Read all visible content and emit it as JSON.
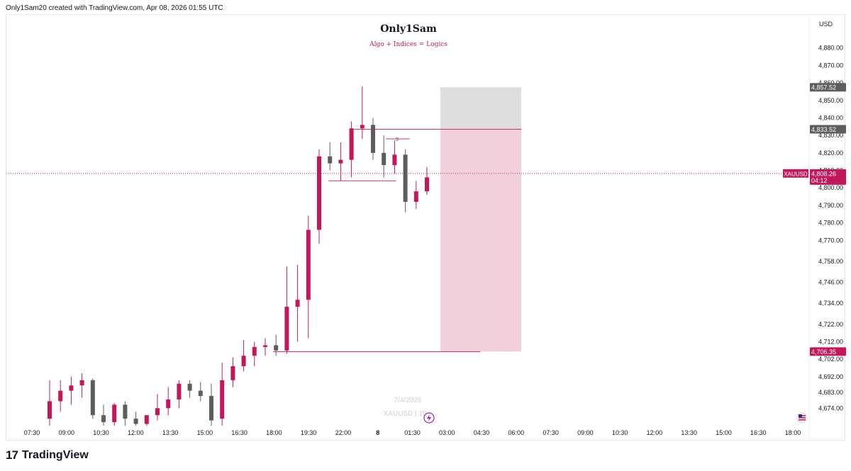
{
  "header": {
    "note": "Only1Sam20 created with TradingView.com, Apr 08, 2026 01:55 UTC"
  },
  "branding": {
    "name": "TradingView",
    "logo_icon": "tradingview-logo-icon"
  },
  "chart_data": {
    "type": "candlestick",
    "title": "Only1Sam",
    "subtitle": "Algo + Indices = Logics",
    "currency_label": "USD",
    "symbol": "XAUUSD",
    "watermark": {
      "date": "7/4/2026",
      "symbol": "XAUUSD",
      "interval": "15"
    },
    "price_axis": {
      "min": 4664,
      "max": 4890,
      "ticks": [
        "4,880.00",
        "4,870.00",
        "4,860.00",
        "4,850.00",
        "4,840.00",
        "4,830.00",
        "4,820.00",
        "4,810.00",
        "4,800.00",
        "4,790.00",
        "4,780.00",
        "4,770.00",
        "4,758.00",
        "4,746.00",
        "4,734.00",
        "4,722.00",
        "4,712.00",
        "4,702.00",
        "4,692.00",
        "4,683.00",
        "4,674.00"
      ],
      "tick_values": [
        4880,
        4870,
        4860,
        4850,
        4840,
        4830,
        4820,
        4810,
        4800,
        4790,
        4780,
        4770,
        4758,
        4746,
        4734,
        4722,
        4712,
        4702,
        4692,
        4683,
        4674
      ]
    },
    "time_axis": {
      "labels": [
        "07:30",
        "09:00",
        "10:30",
        "12:00",
        "13:30",
        "15:00",
        "16:30",
        "18:00",
        "19:30",
        "22:00",
        "8",
        "01:30",
        "03:00",
        "04:30",
        "06:00",
        "07:30",
        "09:00",
        "10:30",
        "12:00",
        "13:30",
        "15:00",
        "16:30",
        "18:00"
      ]
    },
    "candles": [
      {
        "o": 4668,
        "h": 4690,
        "l": 4664,
        "c": 4678
      },
      {
        "o": 4678,
        "h": 4690,
        "l": 4672,
        "c": 4684
      },
      {
        "o": 4684,
        "h": 4692,
        "l": 4676,
        "c": 4687
      },
      {
        "o": 4687,
        "h": 4694,
        "l": 4680,
        "c": 4690
      },
      {
        "o": 4690,
        "h": 4691,
        "l": 4668,
        "c": 4670
      },
      {
        "o": 4670,
        "h": 4676,
        "l": 4664,
        "c": 4666
      },
      {
        "o": 4666,
        "h": 4677,
        "l": 4664,
        "c": 4676
      },
      {
        "o": 4676,
        "h": 4678,
        "l": 4664,
        "c": 4668
      },
      {
        "o": 4668,
        "h": 4672,
        "l": 4664,
        "c": 4665
      },
      {
        "o": 4665,
        "h": 4670,
        "l": 4664,
        "c": 4670
      },
      {
        "o": 4670,
        "h": 4682,
        "l": 4667,
        "c": 4674
      },
      {
        "o": 4674,
        "h": 4686,
        "l": 4670,
        "c": 4679
      },
      {
        "o": 4679,
        "h": 4690,
        "l": 4674,
        "c": 4688
      },
      {
        "o": 4688,
        "h": 4690,
        "l": 4680,
        "c": 4684
      },
      {
        "o": 4684,
        "h": 4689,
        "l": 4678,
        "c": 4681
      },
      {
        "o": 4681,
        "h": 4688,
        "l": 4664,
        "c": 4667
      },
      {
        "o": 4668,
        "h": 4700,
        "l": 4664,
        "c": 4690
      },
      {
        "o": 4690,
        "h": 4703,
        "l": 4686,
        "c": 4698
      },
      {
        "o": 4698,
        "h": 4713,
        "l": 4695,
        "c": 4704
      },
      {
        "o": 4704,
        "h": 4712,
        "l": 4698,
        "c": 4709
      },
      {
        "o": 4709,
        "h": 4714,
        "l": 4704,
        "c": 4710
      },
      {
        "o": 4710,
        "h": 4716,
        "l": 4704,
        "c": 4707
      },
      {
        "o": 4707,
        "h": 4755,
        "l": 4705,
        "c": 4732
      },
      {
        "o": 4732,
        "h": 4756,
        "l": 4712,
        "c": 4736
      },
      {
        "o": 4736,
        "h": 4784,
        "l": 4714,
        "c": 4776
      },
      {
        "o": 4776,
        "h": 4822,
        "l": 4768,
        "c": 4818
      },
      {
        "o": 4818,
        "h": 4826,
        "l": 4810,
        "c": 4814
      },
      {
        "o": 4814,
        "h": 4826,
        "l": 4804,
        "c": 4816
      },
      {
        "o": 4816,
        "h": 4838,
        "l": 4806,
        "c": 4834
      },
      {
        "o": 4834,
        "h": 4858,
        "l": 4828,
        "c": 4836
      },
      {
        "o": 4836,
        "h": 4840,
        "l": 4816,
        "c": 4820
      },
      {
        "o": 4820,
        "h": 4830,
        "l": 4806,
        "c": 4813
      },
      {
        "o": 4813,
        "h": 4827,
        "l": 4808,
        "c": 4819
      },
      {
        "o": 4819,
        "h": 4822,
        "l": 4786,
        "c": 4792
      },
      {
        "o": 4792,
        "h": 4804,
        "l": 4788,
        "c": 4798
      },
      {
        "o": 4798,
        "h": 4812,
        "l": 4796,
        "c": 4806
      }
    ],
    "current_price": {
      "label": "4,808.26",
      "countdown": "04:12",
      "value": 4808.26
    },
    "position": {
      "entry": {
        "label": "4,833.52",
        "value": 4833.52
      },
      "stop": {
        "label": "4,857.52",
        "value": 4857.52
      },
      "target": {
        "label": "4,706.35",
        "value": 4706.35
      }
    },
    "annotations": [
      {
        "text": "S"
      }
    ],
    "colors": {
      "bull": "#c2185b",
      "bear": "#5d5d5d",
      "stop_zone": "#dddddd",
      "profit_zone": "#f3d0de",
      "price_line": "#c2185b",
      "subtitle": "#c2185b"
    }
  }
}
